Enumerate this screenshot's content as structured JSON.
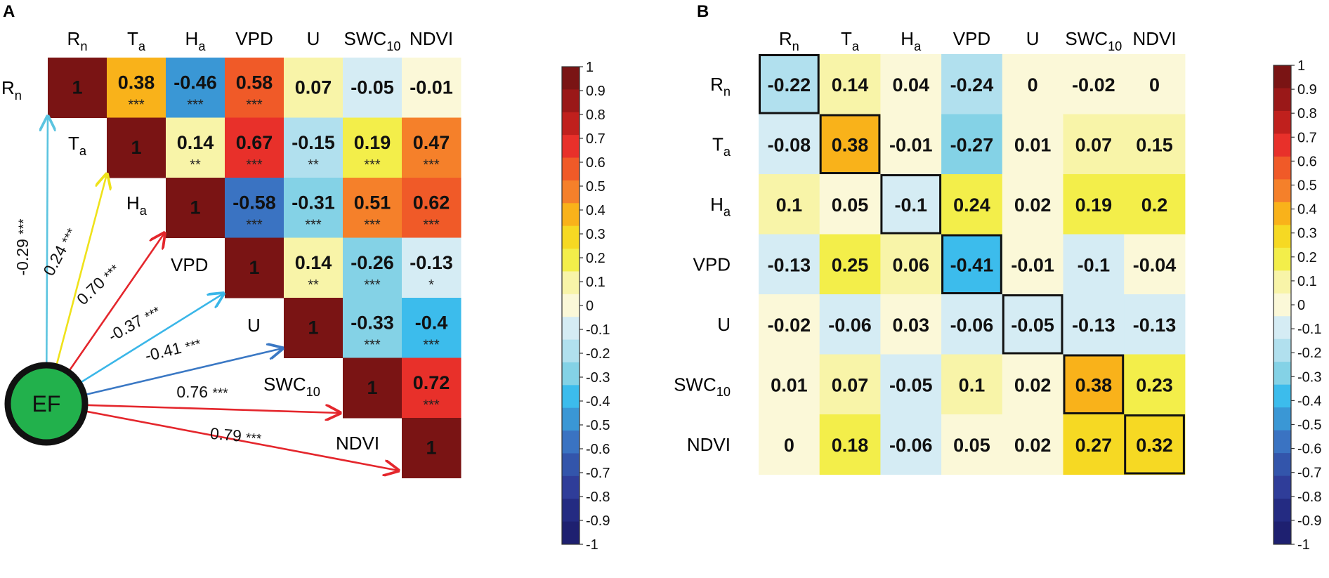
{
  "panels": {
    "a_label": "A",
    "b_label": "B"
  },
  "colorbar": {
    "ticks": [
      "1",
      "0.9",
      "0.8",
      "0.7",
      "0.6",
      "0.5",
      "0.4",
      "0.3",
      "0.2",
      "0.1",
      "0",
      "-0.1",
      "-0.2",
      "-0.3",
      "-0.4",
      "-0.5",
      "-0.6",
      "-0.7",
      "-0.8",
      "-0.9",
      "-1"
    ],
    "colors": [
      "#7a1414",
      "#9a1818",
      "#c0201d",
      "#e8302a",
      "#f05a28",
      "#f5802a",
      "#f9b21a",
      "#f6d923",
      "#f3ee4a",
      "#f8f4a8",
      "#fbf8d8",
      "#d5ecf4",
      "#b1e0ee",
      "#84d2e6",
      "#3cbcec",
      "#3a97d5",
      "#3a73c2",
      "#3355ab",
      "#2f3d99",
      "#242b82",
      "#1e2070"
    ]
  },
  "chart_data": [
    {
      "type": "heatmap",
      "panel": "A",
      "title": "",
      "variables": [
        {
          "base": "R",
          "sub": "n"
        },
        {
          "base": "T",
          "sub": "a"
        },
        {
          "base": "H",
          "sub": "a"
        },
        {
          "base": "VPD",
          "sub": ""
        },
        {
          "base": "U",
          "sub": ""
        },
        {
          "base": "SWC",
          "sub": "10"
        },
        {
          "base": "NDVI",
          "sub": ""
        }
      ],
      "matrix": [
        [
          1,
          0.38,
          -0.46,
          0.58,
          0.07,
          -0.05,
          -0.01
        ],
        [
          null,
          1,
          0.14,
          0.67,
          -0.15,
          0.19,
          0.47
        ],
        [
          null,
          null,
          1,
          -0.58,
          -0.31,
          0.51,
          0.62
        ],
        [
          null,
          null,
          null,
          1,
          0.14,
          -0.26,
          -0.13
        ],
        [
          null,
          null,
          null,
          null,
          1,
          -0.33,
          -0.4
        ],
        [
          null,
          null,
          null,
          null,
          null,
          1,
          0.72
        ],
        [
          null,
          null,
          null,
          null,
          null,
          null,
          1
        ]
      ],
      "significance": [
        [
          "",
          "***",
          "***",
          "***",
          "",
          "",
          ""
        ],
        [
          "",
          "",
          "**",
          "***",
          "**",
          "***",
          "***"
        ],
        [
          "",
          "",
          "",
          "***",
          "***",
          "***",
          "***"
        ],
        [
          "",
          "",
          "",
          "",
          "**",
          "***",
          "*"
        ],
        [
          "",
          "",
          "",
          "",
          "",
          "***",
          "***"
        ],
        [
          "",
          "",
          "",
          "",
          "",
          "",
          "***"
        ],
        [
          "",
          "",
          "",
          "",
          "",
          "",
          ""
        ]
      ],
      "ef_node": "EF",
      "ef_paths": [
        {
          "target": "Rn",
          "coef": "-0.29",
          "sig": "***"
        },
        {
          "target": "Ta",
          "coef": "0.24",
          "sig": "***"
        },
        {
          "target": "Ha",
          "coef": "0.70",
          "sig": "***"
        },
        {
          "target": "VPD",
          "coef": "-0.37",
          "sig": "***"
        },
        {
          "target": "U",
          "coef": "-0.41",
          "sig": "***"
        },
        {
          "target": "SWC10",
          "coef": "0.76",
          "sig": "***"
        },
        {
          "target": "NDVI",
          "coef": "0.79",
          "sig": "***"
        }
      ],
      "colorbar_range": [
        -1,
        1
      ]
    },
    {
      "type": "heatmap",
      "panel": "B",
      "title": "",
      "variables": [
        {
          "base": "R",
          "sub": "n"
        },
        {
          "base": "T",
          "sub": "a"
        },
        {
          "base": "H",
          "sub": "a"
        },
        {
          "base": "VPD",
          "sub": ""
        },
        {
          "base": "U",
          "sub": ""
        },
        {
          "base": "SWC",
          "sub": "10"
        },
        {
          "base": "NDVI",
          "sub": ""
        }
      ],
      "matrix": [
        [
          -0.22,
          0.14,
          0.04,
          -0.24,
          0,
          -0.02,
          0
        ],
        [
          -0.08,
          0.38,
          -0.01,
          -0.27,
          0.01,
          0.07,
          0.15
        ],
        [
          0.1,
          0.05,
          -0.1,
          0.24,
          0.02,
          0.19,
          0.2
        ],
        [
          -0.13,
          0.25,
          0.06,
          -0.41,
          -0.01,
          -0.1,
          -0.04
        ],
        [
          -0.02,
          -0.06,
          0.03,
          -0.06,
          -0.05,
          -0.13,
          -0.13
        ],
        [
          0.01,
          0.07,
          -0.05,
          0.1,
          0.02,
          0.38,
          0.23
        ],
        [
          0,
          0.18,
          -0.06,
          0.05,
          0.02,
          0.27,
          0.32
        ]
      ],
      "diagonal_outlined": true,
      "colorbar_range": [
        -1,
        1
      ]
    }
  ]
}
